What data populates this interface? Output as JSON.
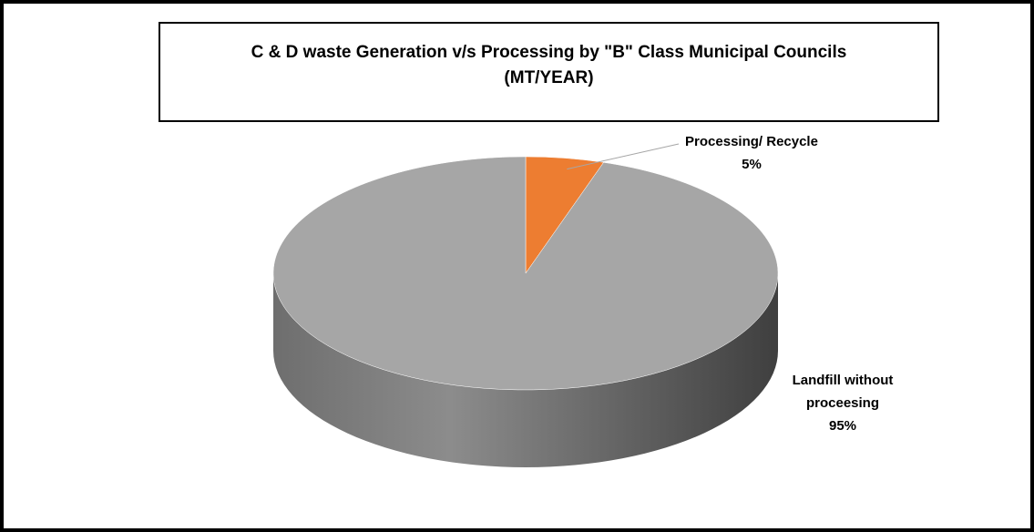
{
  "chart_data": {
    "type": "pie",
    "title": "C & D waste Generation v/s Processing by \"B\" Class Municipal Councils",
    "subtitle": "(MT/YEAR)",
    "categories": [
      "Processing/ Recycle",
      "Landfill without proceesing"
    ],
    "values": [
      5,
      95
    ],
    "value_labels": [
      "5%",
      "95%"
    ],
    "colors": [
      "#ed7d31",
      "#a6a6a6"
    ]
  }
}
